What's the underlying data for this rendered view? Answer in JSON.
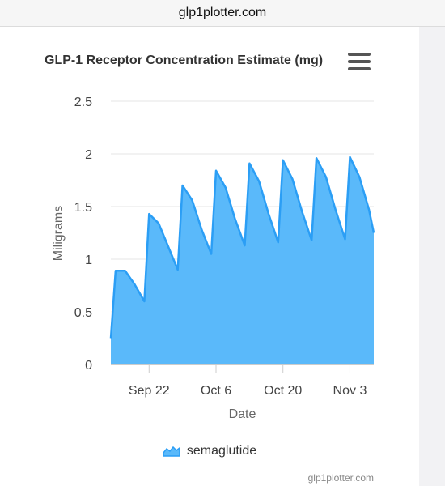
{
  "browser": {
    "url": "glp1plotter.com"
  },
  "chart": {
    "title": "GLP-1 Receptor Concentration Estimate (mg)",
    "menu_icon": "hamburger-menu-icon",
    "credit": "glp1plotter.com"
  },
  "chart_data": {
    "type": "area",
    "title": "GLP-1 Receptor Concentration Estimate (mg)",
    "xlabel": "Date",
    "ylabel": "Miligrams",
    "ylim": [
      0,
      2.5
    ],
    "yticks": [
      "0",
      "0.5",
      "1",
      "1.5",
      "2",
      "2.5"
    ],
    "xtick_labels": [
      "Sep 22",
      "Oct 6",
      "Oct 20",
      "Nov 3"
    ],
    "xtick_dates": [
      "2023-09-22",
      "2023-10-06",
      "2023-10-20",
      "2023-11-03"
    ],
    "xlim": [
      "2023-09-14",
      "2023-11-08"
    ],
    "grid": true,
    "legend_position": "bottom",
    "series": [
      {
        "name": "semaglutide",
        "color": "#2b9ef5",
        "fill": "#5ab9fa",
        "points": [
          {
            "x": "2023-09-14",
            "y": 0.25
          },
          {
            "x": "2023-09-15",
            "y": 0.89
          },
          {
            "x": "2023-09-17",
            "y": 0.89
          },
          {
            "x": "2023-09-19",
            "y": 0.76
          },
          {
            "x": "2023-09-21",
            "y": 0.6
          },
          {
            "x": "2023-09-22",
            "y": 1.43
          },
          {
            "x": "2023-09-24",
            "y": 1.34
          },
          {
            "x": "2023-09-26",
            "y": 1.12
          },
          {
            "x": "2023-09-28",
            "y": 0.9
          },
          {
            "x": "2023-09-29",
            "y": 1.7
          },
          {
            "x": "2023-10-01",
            "y": 1.56
          },
          {
            "x": "2023-10-03",
            "y": 1.28
          },
          {
            "x": "2023-10-05",
            "y": 1.05
          },
          {
            "x": "2023-10-06",
            "y": 1.84
          },
          {
            "x": "2023-10-08",
            "y": 1.68
          },
          {
            "x": "2023-10-10",
            "y": 1.38
          },
          {
            "x": "2023-10-12",
            "y": 1.13
          },
          {
            "x": "2023-10-13",
            "y": 1.91
          },
          {
            "x": "2023-10-15",
            "y": 1.74
          },
          {
            "x": "2023-10-17",
            "y": 1.43
          },
          {
            "x": "2023-10-19",
            "y": 1.16
          },
          {
            "x": "2023-10-20",
            "y": 1.94
          },
          {
            "x": "2023-10-22",
            "y": 1.76
          },
          {
            "x": "2023-10-24",
            "y": 1.45
          },
          {
            "x": "2023-10-26",
            "y": 1.18
          },
          {
            "x": "2023-10-27",
            "y": 1.96
          },
          {
            "x": "2023-10-29",
            "y": 1.78
          },
          {
            "x": "2023-10-31",
            "y": 1.47
          },
          {
            "x": "2023-11-02",
            "y": 1.19
          },
          {
            "x": "2023-11-03",
            "y": 1.97
          },
          {
            "x": "2023-11-05",
            "y": 1.78
          },
          {
            "x": "2023-11-07",
            "y": 1.47
          },
          {
            "x": "2023-11-08",
            "y": 1.25
          }
        ]
      }
    ]
  }
}
